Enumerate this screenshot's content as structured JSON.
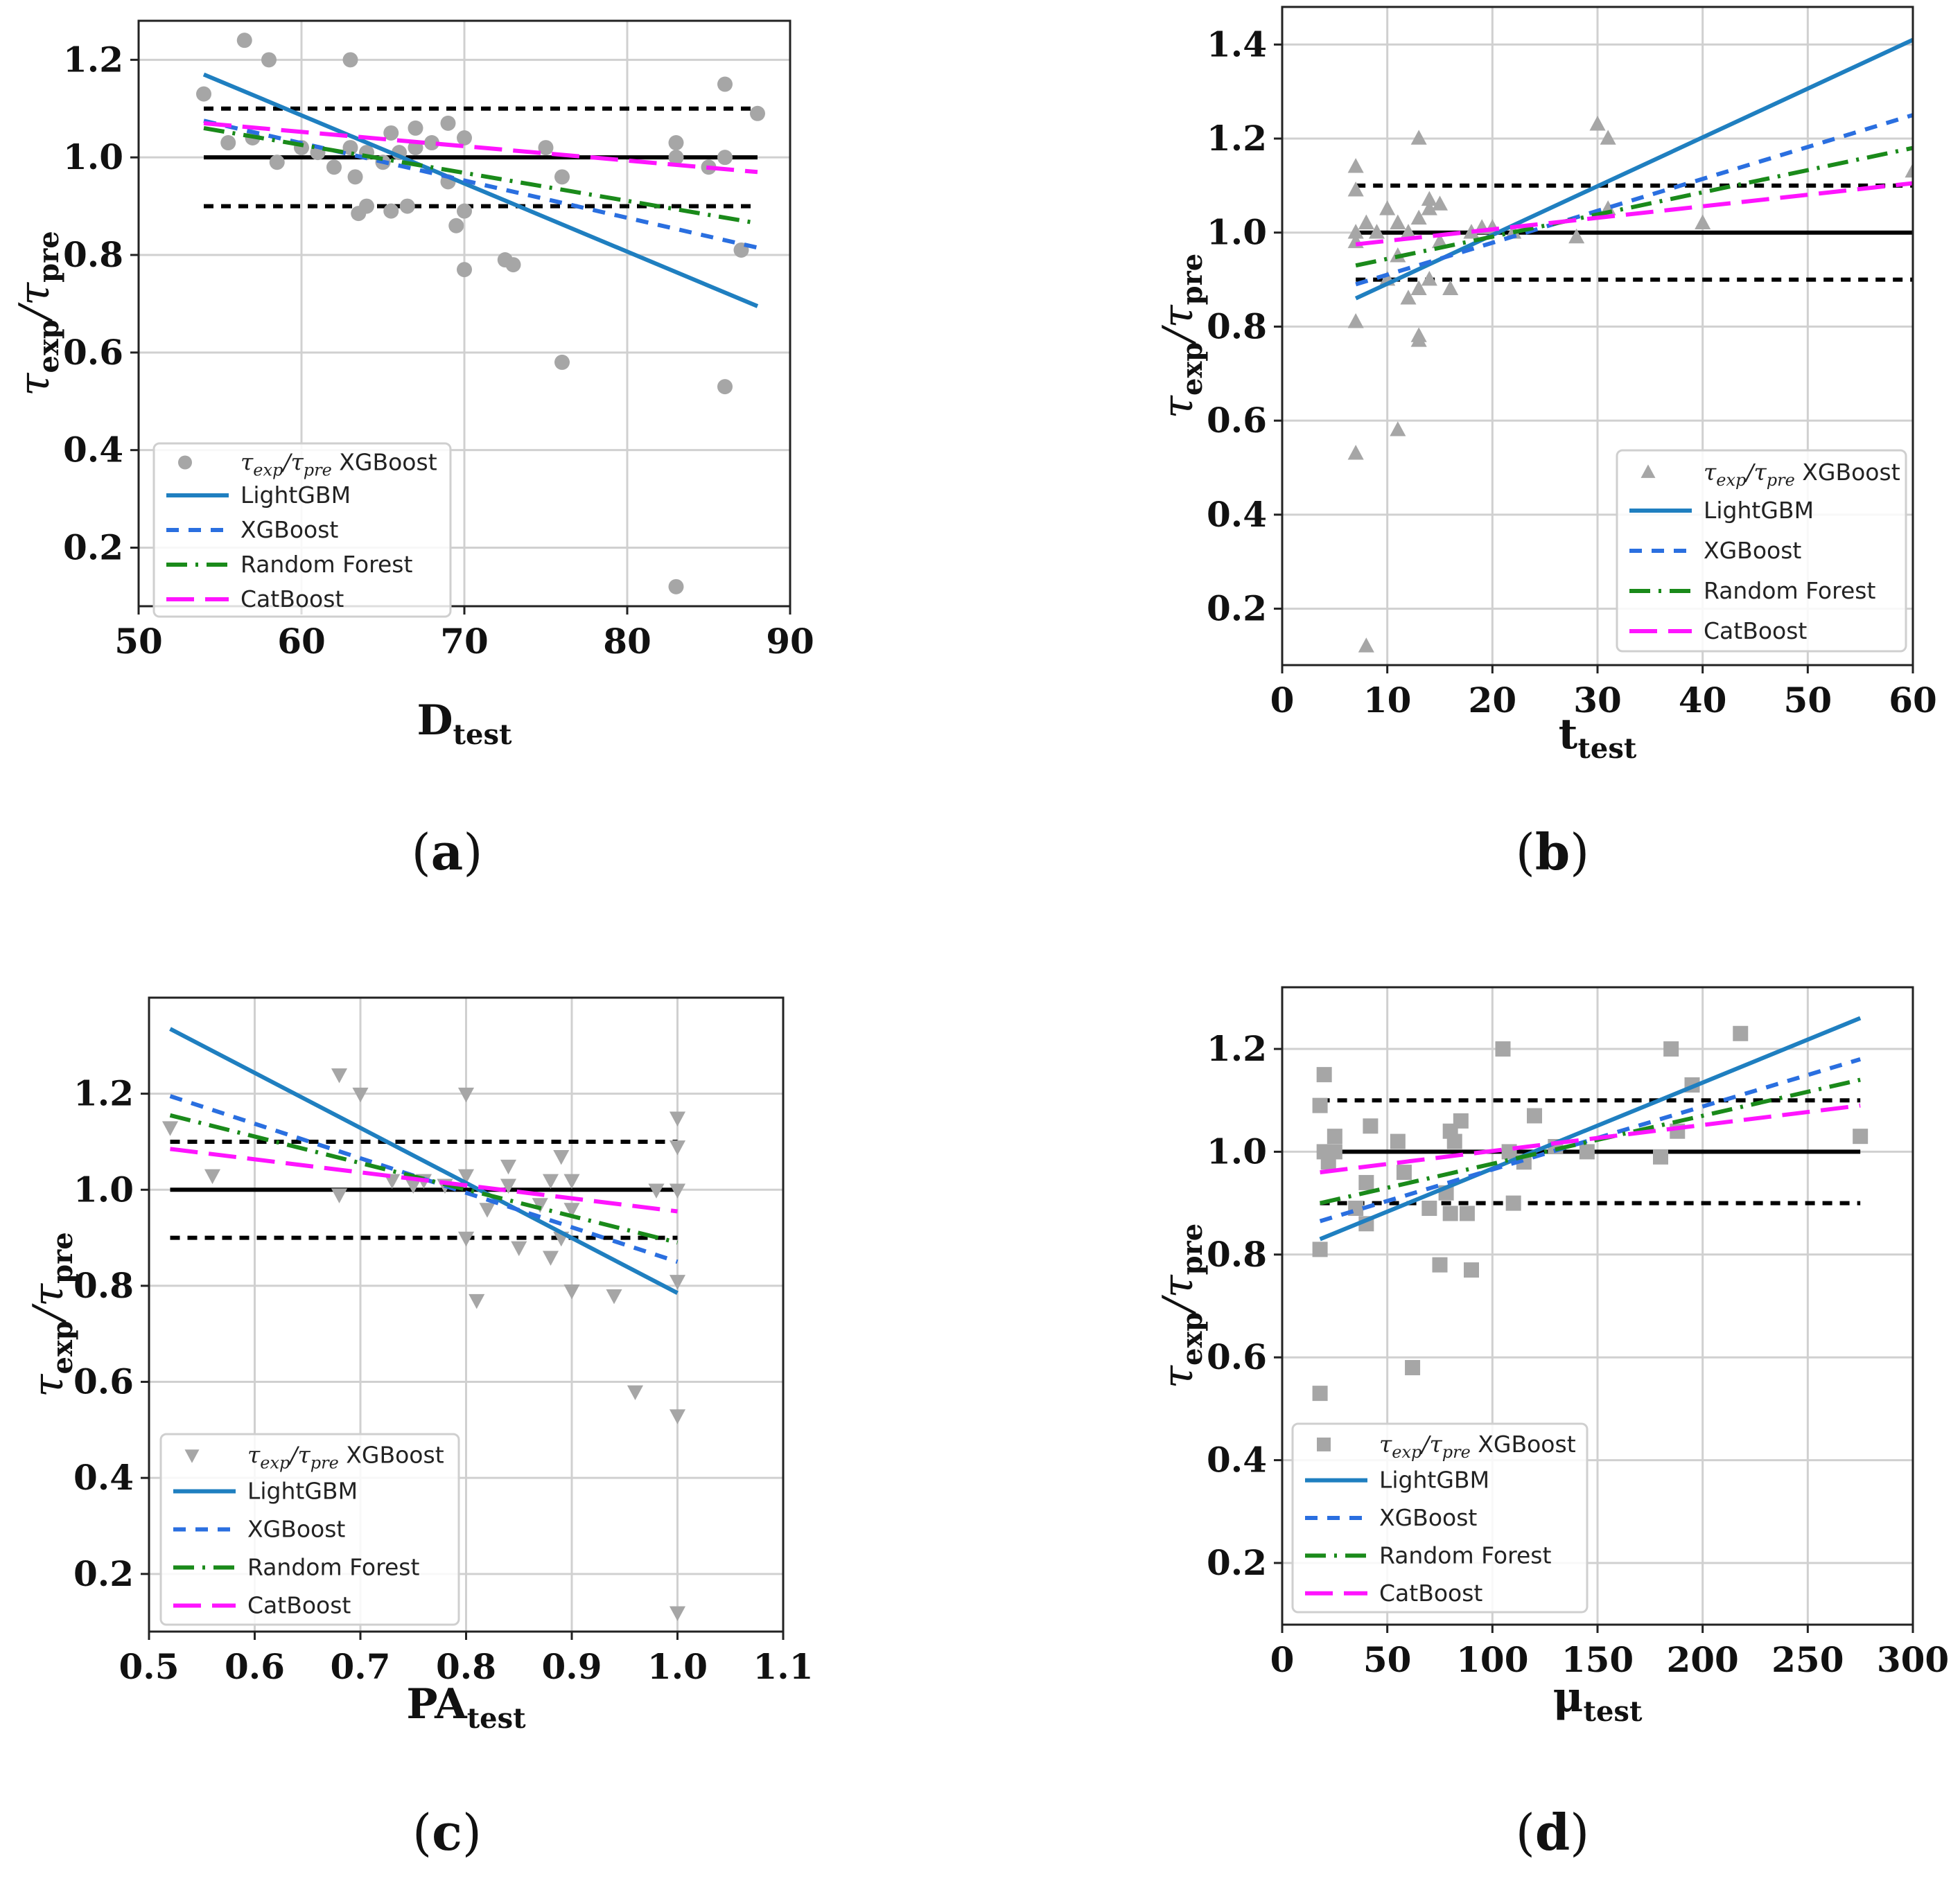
{
  "legend_labels": {
    "scatter_tau": "τ",
    "scatter_exp": "exp",
    "scatter_slash": "/",
    "scatter_pre": "pre",
    "scatter_model": "XGBoost",
    "lightgbm": "LightGBM",
    "xgboost": "XGBoost",
    "random_forest": "Random Forest",
    "catboost": "CatBoost"
  },
  "y_axis_label": {
    "tau": "τ",
    "exp": "exp",
    "slash": "/",
    "pre": "pre"
  },
  "colors": {
    "scatter": "#a6a6a6",
    "lightgbm": "#1f7fc0",
    "xgboost": "#2a6fe0",
    "random_forest": "#1a8a1a",
    "catboost": "#ff14ff",
    "reference": "#000000",
    "grid": "#d0d0d0"
  },
  "chart_data": [
    {
      "panel": "(a)",
      "panel_letter": "a",
      "type": "scatter",
      "marker": "circle",
      "xlabel_main": "D",
      "xlabel_sub": "test",
      "xlim": [
        50,
        90
      ],
      "ylim": [
        0.08,
        1.28
      ],
      "xticks": [
        50,
        60,
        70,
        80,
        90
      ],
      "yticks": [
        0.2,
        0.4,
        0.6,
        0.8,
        1.0,
        1.2
      ],
      "xtick_labels": [
        "50",
        "60",
        "70",
        "80",
        "90"
      ],
      "ytick_labels": [
        "0.2",
        "0.4",
        "0.6",
        "0.8",
        "1.0",
        "1.2"
      ],
      "legend_position": "lower-left",
      "reference_lines": {
        "x_range": [
          54,
          88
        ],
        "y_values": [
          1.0,
          0.9,
          1.1
        ]
      },
      "scatter_points": [
        [
          54,
          1.13
        ],
        [
          55.5,
          1.03
        ],
        [
          56.5,
          1.24
        ],
        [
          57,
          1.04
        ],
        [
          58,
          1.2
        ],
        [
          58.5,
          0.99
        ],
        [
          60,
          1.02
        ],
        [
          61,
          1.01
        ],
        [
          62,
          0.98
        ],
        [
          63,
          1.2
        ],
        [
          63,
          1.02
        ],
        [
          63.3,
          0.96
        ],
        [
          63.5,
          0.885
        ],
        [
          64,
          0.9
        ],
        [
          64,
          1.01
        ],
        [
          65,
          0.99
        ],
        [
          65.5,
          1.05
        ],
        [
          65.5,
          0.89
        ],
        [
          66,
          1.01
        ],
        [
          66.5,
          0.9
        ],
        [
          67,
          1.06
        ],
        [
          67,
          1.02
        ],
        [
          68,
          1.03
        ],
        [
          69,
          0.95
        ],
        [
          69,
          1.07
        ],
        [
          69.5,
          0.86
        ],
        [
          70,
          1.04
        ],
        [
          70,
          0.89
        ],
        [
          70,
          0.77
        ],
        [
          72.5,
          0.79
        ],
        [
          73,
          0.78
        ],
        [
          75,
          1.02
        ],
        [
          76,
          0.96
        ],
        [
          76,
          0.58
        ],
        [
          83,
          1.03
        ],
        [
          83,
          1.0
        ],
        [
          83,
          0.12
        ],
        [
          85,
          0.98
        ],
        [
          86,
          1.15
        ],
        [
          86,
          1.0
        ],
        [
          86,
          0.53
        ],
        [
          87,
          0.81
        ],
        [
          88,
          1.09
        ]
      ],
      "series": [
        {
          "name": "LightGBM",
          "x": [
            54,
            88
          ],
          "y": [
            1.17,
            0.695
          ]
        },
        {
          "name": "XGBoost",
          "x": [
            54,
            88
          ],
          "y": [
            1.075,
            0.815
          ]
        },
        {
          "name": "Random Forest",
          "x": [
            54,
            88
          ],
          "y": [
            1.06,
            0.865
          ]
        },
        {
          "name": "CatBoost",
          "x": [
            54,
            88
          ],
          "y": [
            1.07,
            0.97
          ]
        }
      ]
    },
    {
      "panel": "(b)",
      "panel_letter": "b",
      "type": "scatter",
      "marker": "triangle-up",
      "xlabel_main": "t",
      "xlabel_sub": "test",
      "xlim": [
        0,
        60
      ],
      "ylim": [
        0.08,
        1.48
      ],
      "xticks": [
        0,
        10,
        20,
        30,
        40,
        50,
        60
      ],
      "yticks": [
        0.2,
        0.4,
        0.6,
        0.8,
        1.0,
        1.2,
        1.4
      ],
      "xtick_labels": [
        "0",
        "10",
        "20",
        "30",
        "40",
        "50",
        "60"
      ],
      "ytick_labels": [
        "0.2",
        "0.4",
        "0.6",
        "0.8",
        "1.0",
        "1.2",
        "1.4"
      ],
      "legend_position": "lower-right",
      "reference_lines": {
        "x_range": [
          7,
          60
        ],
        "y_values": [
          1.0,
          0.9,
          1.1
        ]
      },
      "scatter_points": [
        [
          7,
          1.14
        ],
        [
          7,
          1.09
        ],
        [
          7,
          1.0
        ],
        [
          7,
          0.98
        ],
        [
          7,
          0.81
        ],
        [
          7,
          0.53
        ],
        [
          8,
          1.02
        ],
        [
          8,
          0.12
        ],
        [
          9,
          1.0
        ],
        [
          10,
          1.05
        ],
        [
          10,
          0.9
        ],
        [
          11,
          1.02
        ],
        [
          11,
          0.95
        ],
        [
          11,
          0.58
        ],
        [
          12,
          1.0
        ],
        [
          12,
          0.86
        ],
        [
          13,
          1.2
        ],
        [
          13,
          1.03
        ],
        [
          13,
          0.88
        ],
        [
          13,
          0.78
        ],
        [
          13,
          0.77
        ],
        [
          14,
          1.07
        ],
        [
          14,
          1.05
        ],
        [
          14,
          0.9
        ],
        [
          15,
          1.06
        ],
        [
          15,
          0.98
        ],
        [
          16,
          0.88
        ],
        [
          18,
          1.0
        ],
        [
          19,
          1.01
        ],
        [
          20,
          1.01
        ],
        [
          22,
          1.0
        ],
        [
          28,
          0.99
        ],
        [
          30,
          1.23
        ],
        [
          31,
          1.2
        ],
        [
          31,
          1.05
        ],
        [
          40,
          1.02
        ],
        [
          60,
          1.13
        ]
      ],
      "series": [
        {
          "name": "LightGBM",
          "x": [
            7,
            60
          ],
          "y": [
            0.86,
            1.41
          ]
        },
        {
          "name": "XGBoost",
          "x": [
            7,
            60
          ],
          "y": [
            0.89,
            1.25
          ]
        },
        {
          "name": "Random Forest",
          "x": [
            7,
            60
          ],
          "y": [
            0.93,
            1.18
          ]
        },
        {
          "name": "CatBoost",
          "x": [
            7,
            60
          ],
          "y": [
            0.975,
            1.105
          ]
        }
      ]
    },
    {
      "panel": "(c)",
      "panel_letter": "c",
      "type": "scatter",
      "marker": "triangle-down",
      "xlabel_main": "PA",
      "xlabel_sub": "test",
      "xlim": [
        0.5,
        1.1
      ],
      "ylim": [
        0.08,
        1.4
      ],
      "xticks": [
        0.5,
        0.6,
        0.7,
        0.8,
        0.9,
        1.0,
        1.1
      ],
      "yticks": [
        0.2,
        0.4,
        0.6,
        0.8,
        1.0,
        1.2
      ],
      "xtick_labels": [
        "0.5",
        "0.6",
        "0.7",
        "0.8",
        "0.9",
        "1.0",
        "1.1"
      ],
      "ytick_labels": [
        "0.2",
        "0.4",
        "0.6",
        "0.8",
        "1.0",
        "1.2"
      ],
      "legend_position": "lower-left",
      "reference_lines": {
        "x_range": [
          0.52,
          1.0
        ],
        "y_values": [
          1.0,
          0.9,
          1.1
        ]
      },
      "scatter_points": [
        [
          0.52,
          1.13
        ],
        [
          0.56,
          1.03
        ],
        [
          0.68,
          1.24
        ],
        [
          0.68,
          0.99
        ],
        [
          0.7,
          1.2
        ],
        [
          0.73,
          1.02
        ],
        [
          0.75,
          1.01
        ],
        [
          0.76,
          1.02
        ],
        [
          0.78,
          1.01
        ],
        [
          0.8,
          1.2
        ],
        [
          0.8,
          1.03
        ],
        [
          0.8,
          0.9
        ],
        [
          0.81,
          0.77
        ],
        [
          0.82,
          0.96
        ],
        [
          0.84,
          1.05
        ],
        [
          0.84,
          1.01
        ],
        [
          0.85,
          0.88
        ],
        [
          0.87,
          0.97
        ],
        [
          0.88,
          1.02
        ],
        [
          0.88,
          0.86
        ],
        [
          0.89,
          1.07
        ],
        [
          0.89,
          0.9
        ],
        [
          0.9,
          1.02
        ],
        [
          0.9,
          0.96
        ],
        [
          0.9,
          0.79
        ],
        [
          0.94,
          0.78
        ],
        [
          0.96,
          0.58
        ],
        [
          0.98,
          1.0
        ],
        [
          1.0,
          1.15
        ],
        [
          1.0,
          1.09
        ],
        [
          1.0,
          1.0
        ],
        [
          1.0,
          0.81
        ],
        [
          1.0,
          0.53
        ],
        [
          1.0,
          0.12
        ]
      ],
      "series": [
        {
          "name": "LightGBM",
          "x": [
            0.52,
            1.0
          ],
          "y": [
            1.335,
            0.785
          ]
        },
        {
          "name": "XGBoost",
          "x": [
            0.52,
            1.0
          ],
          "y": [
            1.195,
            0.85
          ]
        },
        {
          "name": "Random Forest",
          "x": [
            0.52,
            1.0
          ],
          "y": [
            1.155,
            0.89
          ]
        },
        {
          "name": "CatBoost",
          "x": [
            0.52,
            1.0
          ],
          "y": [
            1.085,
            0.955
          ]
        }
      ]
    },
    {
      "panel": "(d)",
      "panel_letter": "d",
      "type": "scatter",
      "marker": "square",
      "xlabel_main": "μ",
      "xlabel_sub": "test",
      "xlim": [
        0,
        300
      ],
      "ylim": [
        0.08,
        1.32
      ],
      "xticks": [
        0,
        50,
        100,
        150,
        200,
        250,
        300
      ],
      "yticks": [
        0.2,
        0.4,
        0.6,
        0.8,
        1.0,
        1.2
      ],
      "xtick_labels": [
        "0",
        "50",
        "100",
        "150",
        "200",
        "250",
        "300"
      ],
      "ytick_labels": [
        "0.2",
        "0.4",
        "0.6",
        "0.8",
        "1.0",
        "1.2"
      ],
      "legend_position": "lower-left",
      "reference_lines": {
        "x_range": [
          18,
          275
        ],
        "y_values": [
          1.0,
          0.9,
          1.1
        ]
      },
      "scatter_points": [
        [
          18,
          1.09
        ],
        [
          18,
          0.81
        ],
        [
          18,
          0.53
        ],
        [
          20,
          1.15
        ],
        [
          20,
          1.0
        ],
        [
          22,
          0.98
        ],
        [
          25,
          1.03
        ],
        [
          25,
          1.0
        ],
        [
          35,
          0.89
        ],
        [
          40,
          0.94
        ],
        [
          40,
          0.86
        ],
        [
          42,
          1.05
        ],
        [
          55,
          1.02
        ],
        [
          58,
          0.96
        ],
        [
          62,
          0.58
        ],
        [
          70,
          0.89
        ],
        [
          75,
          0.78
        ],
        [
          78,
          0.92
        ],
        [
          80,
          1.04
        ],
        [
          80,
          0.88
        ],
        [
          82,
          1.02
        ],
        [
          85,
          1.06
        ],
        [
          88,
          0.88
        ],
        [
          90,
          0.77
        ],
        [
          105,
          1.2
        ],
        [
          108,
          1.0
        ],
        [
          110,
          0.9
        ],
        [
          115,
          0.98
        ],
        [
          120,
          1.07
        ],
        [
          130,
          1.01
        ],
        [
          145,
          1.0
        ],
        [
          180,
          0.99
        ],
        [
          185,
          1.2
        ],
        [
          188,
          1.04
        ],
        [
          195,
          1.13
        ],
        [
          218,
          1.23
        ],
        [
          275,
          1.03
        ]
      ],
      "series": [
        {
          "name": "LightGBM",
          "x": [
            18,
            275
          ],
          "y": [
            0.83,
            1.26
          ]
        },
        {
          "name": "XGBoost",
          "x": [
            18,
            275
          ],
          "y": [
            0.865,
            1.18
          ]
        },
        {
          "name": "Random Forest",
          "x": [
            18,
            275
          ],
          "y": [
            0.9,
            1.14
          ]
        },
        {
          "name": "CatBoost",
          "x": [
            18,
            275
          ],
          "y": [
            0.96,
            1.09
          ]
        }
      ]
    }
  ]
}
